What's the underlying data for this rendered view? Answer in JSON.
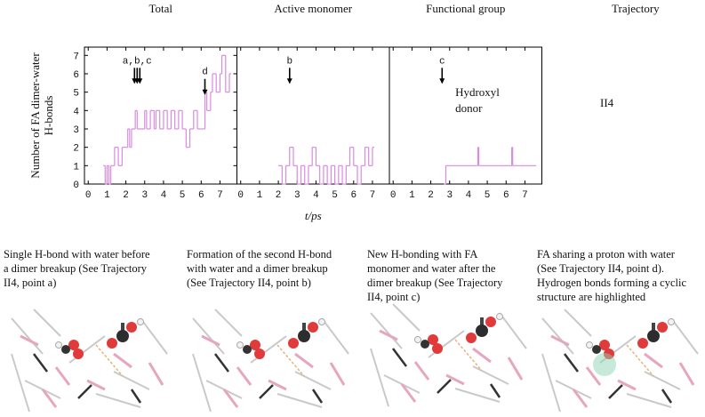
{
  "chart_data": [
    {
      "type": "line",
      "step": true,
      "title": "Total",
      "y_label": [
        "Number of FA dimer-water",
        "H-bonds"
      ],
      "xlim": [
        -0.2,
        7.9
      ],
      "ylim": [
        0,
        7.45
      ],
      "xticks": [
        0,
        1,
        2,
        3,
        4,
        5,
        6,
        7
      ],
      "yticks": [
        0,
        1,
        2,
        3,
        4,
        5,
        6,
        7
      ],
      "series": [
        {
          "color": "#d98be0",
          "x": [
            0.8,
            0.9,
            1.0,
            1.1,
            1.2,
            1.3,
            1.4,
            1.6,
            1.8,
            2.0,
            2.1,
            2.2,
            2.3,
            2.5,
            2.6,
            2.8,
            3.0,
            3.1,
            3.3,
            3.5,
            3.6,
            3.8,
            4.0,
            4.2,
            4.4,
            4.6,
            4.8,
            5.0,
            5.2,
            5.4,
            5.6,
            5.8,
            6.0,
            6.2,
            6.3,
            6.5,
            6.6,
            6.8,
            7.0,
            7.1,
            7.3,
            7.5
          ],
          "values": [
            1,
            0,
            1,
            0,
            1,
            1,
            2,
            1,
            2,
            2,
            3,
            2,
            3,
            4,
            3,
            3,
            4,
            3,
            4,
            3,
            4,
            3,
            4,
            3,
            4,
            3,
            4,
            3,
            2,
            3,
            4,
            3,
            3,
            5,
            4,
            5,
            6,
            5,
            6,
            7,
            5,
            6
          ]
        }
      ],
      "annotations": [
        {
          "text": "a,b,c",
          "x": 2.6,
          "y": 5.5
        },
        {
          "text": "d",
          "x": 6.2,
          "y": 4.9
        }
      ]
    },
    {
      "type": "line",
      "step": true,
      "title": "Active monomer",
      "x_label": "t/ps",
      "xlim": [
        -0.2,
        7.9
      ],
      "ylim": [
        0,
        7.45
      ],
      "xticks": [
        0,
        1,
        2,
        3,
        4,
        5,
        6,
        7
      ],
      "series": [
        {
          "color": "#d98be0",
          "x": [
            2.0,
            2.2,
            2.4,
            2.6,
            2.8,
            3.0,
            3.2,
            3.4,
            3.6,
            3.8,
            4.0,
            4.2,
            4.4,
            4.6,
            4.8,
            5.0,
            5.2,
            5.4,
            5.6,
            5.8,
            6.0,
            6.2,
            6.4,
            6.6,
            6.8,
            7.0
          ],
          "values": [
            1,
            0,
            1,
            2,
            1,
            0,
            1,
            0,
            1,
            2,
            1,
            0,
            1,
            0,
            1,
            0,
            1,
            0,
            1,
            2,
            1,
            0,
            1,
            2,
            1,
            2
          ]
        }
      ],
      "annotations": [
        {
          "text": "b",
          "x": 2.6,
          "y": 5.5
        }
      ]
    },
    {
      "type": "line",
      "step": true,
      "title": "Functional group",
      "xlim": [
        -0.2,
        7.9
      ],
      "ylim": [
        0,
        7.45
      ],
      "xticks": [
        0,
        1,
        2,
        3,
        4,
        5,
        6,
        7
      ],
      "series": [
        {
          "color": "#d98be0",
          "x": [
            2.7,
            2.8,
            4.5,
            4.55,
            6.3,
            6.35,
            7.5
          ],
          "values": [
            0,
            1,
            2,
            1,
            2,
            1,
            1
          ]
        }
      ],
      "annotations": [
        {
          "text": "c",
          "x": 2.6,
          "y": 5.5
        },
        {
          "text": [
            "Hydroxyl",
            "donor"
          ],
          "x": 3.3,
          "y": 4.8
        }
      ]
    }
  ],
  "column_header": "Trajectory",
  "trajectory": "II4",
  "captions": [
    [
      "Single H-bond with water before",
      "a dimer breakup (See Trajectory",
      "II4, point a)"
    ],
    [
      "Formation of the second H-bond",
      "with water and a dimer breakup",
      "(See Trajectory II4, point b)"
    ],
    [
      "New H-bonding with FA",
      "monomer and water after the",
      "dimer breakup (See Trajectory",
      "II4, point c)"
    ],
    [
      "FA sharing a proton with water",
      "(See Trajectory II4, point d).",
      "Hydrogen bonds forming a cyclic",
      "structure are highlighted"
    ]
  ]
}
